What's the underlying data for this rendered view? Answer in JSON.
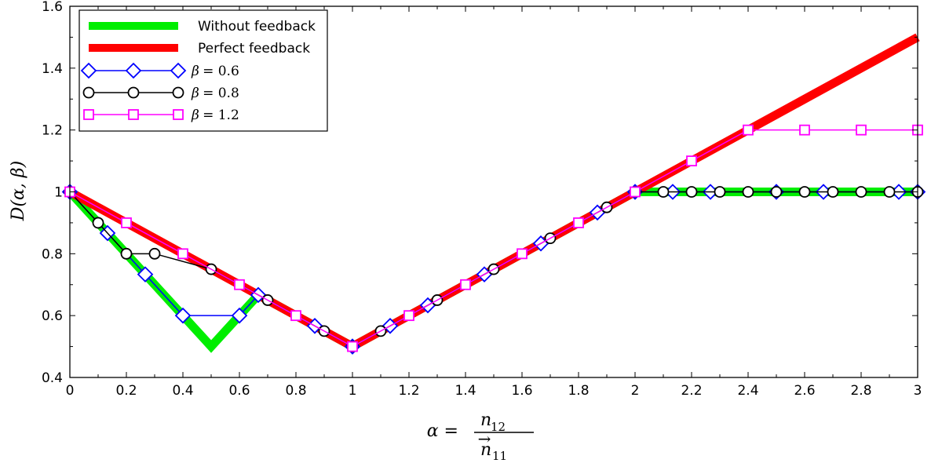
{
  "chart_data": {
    "type": "line",
    "xlim": [
      0,
      3
    ],
    "ylim": [
      0.4,
      1.6
    ],
    "grid": false,
    "legend_position": "top-left",
    "x_ticks": [
      0,
      0.2,
      0.4,
      0.6,
      0.8,
      1,
      1.2,
      1.4,
      1.6,
      1.8,
      2,
      2.2,
      2.4,
      2.6,
      2.8,
      3
    ],
    "x_tick_labels": [
      "0",
      "0.2",
      "0.4",
      "0.6",
      "0.8",
      "1",
      "1.2",
      "1.4",
      "1.6",
      "1.8",
      "2",
      "2.2",
      "2.4",
      "2.6",
      "2.8",
      "3"
    ],
    "y_ticks": [
      0.4,
      0.6,
      0.8,
      1,
      1.2,
      1.4,
      1.6
    ],
    "y_tick_labels": [
      "0.4",
      "0.6",
      "0.8",
      "1",
      "1.2",
      "1.4",
      "1.6"
    ],
    "ylabel": "D(α, β)",
    "xlabel": {
      "lhs": "α =",
      "numerator": "n",
      "numerator_sub": "12",
      "denominator": "n",
      "denominator_sub": "11",
      "denominator_arrow": "→"
    },
    "series": [
      {
        "name": "Without feedback",
        "color": "#00ee00",
        "style": "thick-line",
        "x": [
          0,
          0.5,
          0.6667,
          1,
          2,
          3
        ],
        "y": [
          1,
          0.5,
          0.6667,
          0.5,
          1,
          1
        ]
      },
      {
        "name": "Perfect feedback",
        "color": "#ff0000",
        "style": "thick-line",
        "x": [
          0,
          1,
          3
        ],
        "y": [
          1,
          0.5,
          1.5
        ]
      },
      {
        "name": "β = 0.6",
        "label_lhs": "β",
        "label_rhs": "= 0.6",
        "color": "#0000ff",
        "marker": "diamond",
        "x": [
          0,
          0.1333,
          0.2667,
          0.4,
          0.6,
          0.6667,
          0.8667,
          1,
          1.1333,
          1.2667,
          1.4667,
          1.6667,
          1.8667,
          2,
          2.1333,
          2.2667,
          2.5,
          2.6667,
          2.9333,
          3
        ],
        "y": [
          1,
          0.8667,
          0.7333,
          0.6,
          0.6,
          0.6667,
          0.5667,
          0.5,
          0.5667,
          0.6333,
          0.7333,
          0.8333,
          0.9333,
          1,
          1,
          1,
          1,
          1,
          1,
          1
        ]
      },
      {
        "name": "β = 0.8",
        "label_lhs": "β",
        "label_rhs": "= 0.8",
        "color": "#000000",
        "marker": "circle",
        "x": [
          0,
          0.1,
          0.2,
          0.3,
          0.5,
          0.7,
          0.9,
          1,
          1.1,
          1.3,
          1.5,
          1.7,
          1.9,
          2,
          2.1,
          2.2,
          2.3,
          2.4,
          2.5,
          2.6,
          2.7,
          2.8,
          2.9,
          3
        ],
        "y": [
          1,
          0.9,
          0.8,
          0.8,
          0.75,
          0.65,
          0.55,
          0.5,
          0.55,
          0.65,
          0.75,
          0.85,
          0.95,
          1,
          1,
          1,
          1,
          1,
          1,
          1,
          1,
          1,
          1,
          1
        ]
      },
      {
        "name": "β = 1.2",
        "label_lhs": "β",
        "label_rhs": "= 1.2",
        "color": "#ff00ff",
        "marker": "square",
        "x": [
          0,
          0.2,
          0.4,
          0.6,
          0.8,
          1,
          1.2,
          1.4,
          1.6,
          1.8,
          2,
          2.2,
          2.4,
          2.6,
          2.8,
          3
        ],
        "y": [
          1,
          0.9,
          0.8,
          0.7,
          0.6,
          0.5,
          0.6,
          0.7,
          0.8,
          0.9,
          1,
          1.1,
          1.2,
          1.2,
          1.2,
          1.2
        ]
      }
    ]
  }
}
